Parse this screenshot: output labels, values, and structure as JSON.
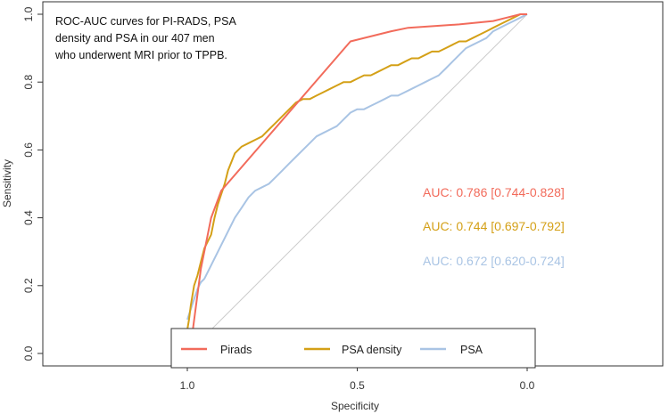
{
  "chart_data": {
    "type": "line",
    "title": "",
    "xlabel": "Specificity",
    "ylabel": "Sensitivity",
    "xlim": [
      1.0,
      0.0
    ],
    "ylim": [
      0.0,
      1.0
    ],
    "x_reversed": true,
    "x_ticks": [
      1.0,
      0.5,
      0.0
    ],
    "x_tick_labels": [
      "1.0",
      "0.5",
      "0.0"
    ],
    "y_ticks": [
      0.0,
      0.2,
      0.4,
      0.6,
      0.8,
      1.0
    ],
    "y_tick_labels": [
      "0.0",
      "0.2",
      "0.4",
      "0.6",
      "0.8",
      "1.0"
    ],
    "annotation": [
      "ROC-AUC curves for PI-RADS, PSA",
      "density and PSA in our 407 men",
      "who underwent MRI prior to TPPB."
    ],
    "reference_line": {
      "x": [
        1.0,
        0.0
      ],
      "y": [
        0.0,
        1.0
      ],
      "color": "#cccccc"
    },
    "series": [
      {
        "name": "Pirads",
        "color": "#f26b5b",
        "auc_label": "AUC: 0.786 [0.744-0.828]",
        "specificity": [
          0.99,
          0.985,
          0.96,
          0.93,
          0.9,
          0.52,
          0.4,
          0.35,
          0.2,
          0.1,
          0.06,
          0.02,
          0.0
        ],
        "sensitivity": [
          0.0,
          0.06,
          0.25,
          0.4,
          0.48,
          0.92,
          0.95,
          0.96,
          0.97,
          0.98,
          0.99,
          1.0,
          1.0
        ]
      },
      {
        "name": "PSA density",
        "color": "#d4a017",
        "auc_label": "AUC: 0.744 [0.697-0.792]",
        "specificity": [
          1.0,
          0.995,
          0.99,
          0.985,
          0.98,
          0.97,
          0.96,
          0.95,
          0.94,
          0.93,
          0.92,
          0.91,
          0.9,
          0.89,
          0.88,
          0.86,
          0.84,
          0.82,
          0.8,
          0.78,
          0.76,
          0.74,
          0.72,
          0.7,
          0.68,
          0.66,
          0.64,
          0.62,
          0.6,
          0.58,
          0.56,
          0.54,
          0.52,
          0.5,
          0.48,
          0.46,
          0.44,
          0.42,
          0.4,
          0.38,
          0.36,
          0.34,
          0.32,
          0.3,
          0.28,
          0.26,
          0.24,
          0.22,
          0.2,
          0.18,
          0.16,
          0.14,
          0.12,
          0.1,
          0.08,
          0.06,
          0.04,
          0.02,
          0.0
        ],
        "sensitivity": [
          0.07,
          0.1,
          0.14,
          0.17,
          0.2,
          0.23,
          0.27,
          0.31,
          0.33,
          0.35,
          0.4,
          0.44,
          0.47,
          0.5,
          0.54,
          0.59,
          0.61,
          0.62,
          0.63,
          0.64,
          0.66,
          0.68,
          0.7,
          0.72,
          0.74,
          0.75,
          0.75,
          0.76,
          0.77,
          0.78,
          0.79,
          0.8,
          0.8,
          0.81,
          0.82,
          0.82,
          0.83,
          0.84,
          0.85,
          0.85,
          0.86,
          0.87,
          0.87,
          0.88,
          0.89,
          0.89,
          0.9,
          0.91,
          0.92,
          0.92,
          0.93,
          0.94,
          0.95,
          0.96,
          0.97,
          0.98,
          0.99,
          1.0,
          1.0
        ]
      },
      {
        "name": "PSA",
        "color": "#a9c4e4",
        "auc_label": "AUC: 0.672 [0.620-0.724]",
        "specificity": [
          1.0,
          0.99,
          0.98,
          0.97,
          0.96,
          0.95,
          0.94,
          0.93,
          0.92,
          0.91,
          0.9,
          0.88,
          0.86,
          0.84,
          0.82,
          0.8,
          0.78,
          0.76,
          0.74,
          0.72,
          0.7,
          0.68,
          0.66,
          0.64,
          0.62,
          0.6,
          0.58,
          0.56,
          0.54,
          0.52,
          0.5,
          0.48,
          0.46,
          0.44,
          0.42,
          0.4,
          0.38,
          0.36,
          0.34,
          0.32,
          0.3,
          0.28,
          0.26,
          0.24,
          0.22,
          0.2,
          0.18,
          0.16,
          0.14,
          0.12,
          0.1,
          0.08,
          0.06,
          0.04,
          0.02,
          0.0
        ],
        "sensitivity": [
          0.1,
          0.13,
          0.16,
          0.19,
          0.21,
          0.22,
          0.24,
          0.26,
          0.28,
          0.3,
          0.32,
          0.36,
          0.4,
          0.43,
          0.46,
          0.48,
          0.49,
          0.5,
          0.52,
          0.54,
          0.56,
          0.58,
          0.6,
          0.62,
          0.64,
          0.65,
          0.66,
          0.67,
          0.69,
          0.71,
          0.72,
          0.72,
          0.73,
          0.74,
          0.75,
          0.76,
          0.76,
          0.77,
          0.78,
          0.79,
          0.8,
          0.81,
          0.82,
          0.84,
          0.86,
          0.88,
          0.9,
          0.91,
          0.92,
          0.93,
          0.95,
          0.96,
          0.97,
          0.98,
          0.99,
          1.0
        ]
      }
    ],
    "legend": {
      "position": "bottom-center",
      "entries": [
        "Pirads",
        "PSA density",
        "PSA"
      ]
    }
  }
}
